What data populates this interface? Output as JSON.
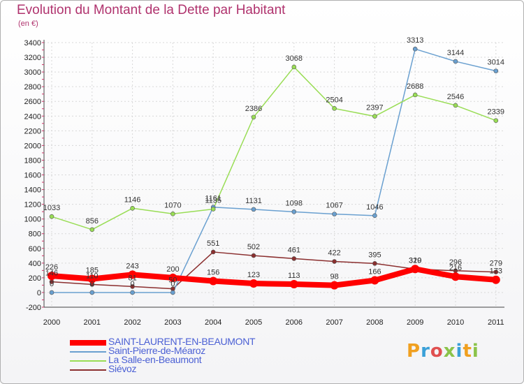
{
  "chart_data": {
    "type": "line",
    "title": "Evolution du Montant de la Dette par Habitant",
    "subtitle": "(en €)",
    "x": [
      "2000",
      "2001",
      "2002",
      "2003",
      "2004",
      "2005",
      "2006",
      "2007",
      "2008",
      "2009",
      "2010",
      "2011"
    ],
    "ylim": [
      -200,
      3400
    ],
    "yticks": [
      -200,
      0,
      200,
      400,
      600,
      800,
      1000,
      1200,
      1400,
      1600,
      1800,
      2000,
      2200,
      2400,
      2600,
      2800,
      3000,
      3200,
      3400
    ],
    "grid": true,
    "legend_position": "bottom-left",
    "series": [
      {
        "name": "SAINT-LAURENT-EN-BEAUMONT",
        "color": "#ff0000",
        "values": [
          226,
          185,
          243,
          200,
          156,
          123,
          113,
          98,
          166,
          320,
          216,
          173
        ],
        "labels": [
          "226",
          "185",
          "243",
          "200",
          "156",
          "123",
          "113",
          "98",
          "166",
          "320",
          "216",
          "173"
        ]
      },
      {
        "name": "Saint-Pierre-de-Méaroz",
        "color": "#6aa0d0",
        "values": [
          0,
          0,
          0,
          0,
          1161,
          1131,
          1098,
          1067,
          1046,
          3313,
          3144,
          3014
        ],
        "labels": [
          "0",
          "0",
          "0",
          "0",
          "1161",
          "1131",
          "1098",
          "1067",
          "1046",
          "3313",
          "3144",
          "3014"
        ]
      },
      {
        "name": "La Salle-en-Beaumont",
        "color": "#99dd55",
        "values": [
          1033,
          856,
          1146,
          1070,
          1135,
          2386,
          3068,
          2504,
          2397,
          2688,
          2546,
          2339
        ],
        "labels": [
          "1033",
          "856",
          "1146",
          "1070",
          "1135",
          "2386",
          "3068",
          "2504",
          "2397",
          "2688",
          "2546",
          "2339"
        ]
      },
      {
        "name": "Siévoz",
        "color": "#8b2f2f",
        "values": [
          146,
          110,
          81,
          50,
          551,
          502,
          461,
          422,
          395,
          319,
          296,
          279
        ],
        "labels": [
          "146",
          "110",
          "81",
          "50",
          "551",
          "502",
          "461",
          "422",
          "395",
          "319",
          "296",
          "279"
        ]
      }
    ]
  },
  "logo": {
    "text": "Proxiti"
  }
}
